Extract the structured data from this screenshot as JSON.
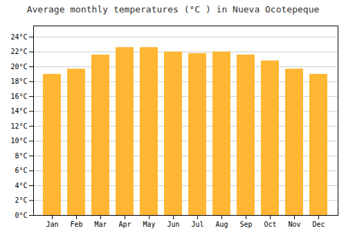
{
  "chart_data": {
    "type": "bar",
    "title": "Average monthly temperatures (°C ) in Nueva Ocotepeque",
    "categories": [
      "Jan",
      "Feb",
      "Mar",
      "Apr",
      "May",
      "Jun",
      "Jul",
      "Aug",
      "Sep",
      "Oct",
      "Nov",
      "Dec"
    ],
    "values": [
      19.0,
      19.7,
      21.6,
      22.6,
      22.6,
      22.0,
      21.8,
      22.0,
      21.6,
      20.8,
      19.7,
      19.0
    ],
    "color": "#FFB733",
    "ylim": [
      0,
      25.5
    ],
    "yticks": [
      {
        "value": 0,
        "label": "0°C"
      },
      {
        "value": 2,
        "label": "2°C"
      },
      {
        "value": 4,
        "label": "4°C"
      },
      {
        "value": 6,
        "label": "6°C"
      },
      {
        "value": 8,
        "label": "8°C"
      },
      {
        "value": 10,
        "label": "10°C"
      },
      {
        "value": 12,
        "label": "12°C"
      },
      {
        "value": 14,
        "label": "14°C"
      },
      {
        "value": 16,
        "label": "16°C"
      },
      {
        "value": 18,
        "label": "18°C"
      },
      {
        "value": 20,
        "label": "20°C"
      },
      {
        "value": 22,
        "label": "22°C"
      },
      {
        "value": 24,
        "label": "24°C"
      }
    ],
    "grid": true
  }
}
